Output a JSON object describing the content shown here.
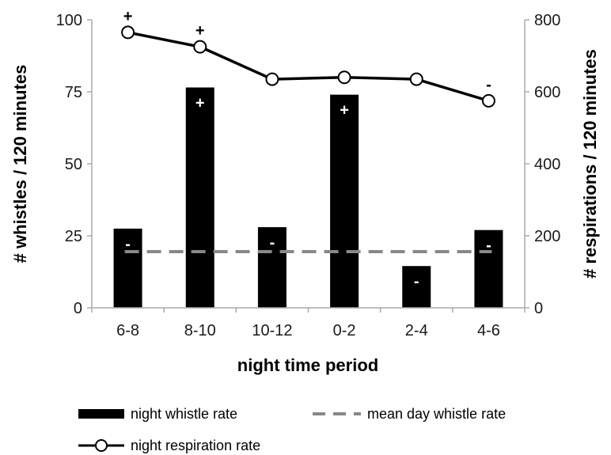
{
  "chart_data": {
    "type": "bar",
    "categories": [
      "6-8",
      "8-10",
      "10-12",
      "0-2",
      "2-4",
      "4-6"
    ],
    "xlabel": "night time period",
    "ylabel": "# whistles / 120 minutes",
    "y2label": "# respirations / 120 minutes",
    "ylim": [
      0,
      100
    ],
    "y2lim": [
      0,
      800
    ],
    "yticks": [
      "0",
      "25",
      "50",
      "75",
      "100"
    ],
    "y2ticks": [
      "0",
      "200",
      "400",
      "600",
      "800"
    ],
    "series": [
      {
        "name": "night whistle rate",
        "type": "bar",
        "axis": "left",
        "color": "#000000",
        "values": [
          27.5,
          76.5,
          28,
          74,
          14.5,
          27
        ],
        "labels": [
          "-",
          "+",
          "-",
          "+",
          "-",
          "-"
        ]
      },
      {
        "name": "mean day whistle rate",
        "type": "line-dashed",
        "axis": "left",
        "color": "#888888",
        "values": [
          19.5,
          19.5,
          19.5,
          19.5,
          19.5,
          19.5
        ]
      },
      {
        "name": "night respiration rate",
        "type": "line-marker",
        "axis": "right",
        "color": "#000000",
        "values": [
          765,
          725,
          635,
          640,
          635,
          575
        ],
        "labels": [
          "+",
          "+",
          "",
          "",
          "",
          "-"
        ]
      }
    ],
    "legend": {
      "placement": "bottom",
      "items": [
        "night whistle rate",
        "mean day whistle rate",
        "night respiration rate"
      ]
    },
    "grid": false
  }
}
